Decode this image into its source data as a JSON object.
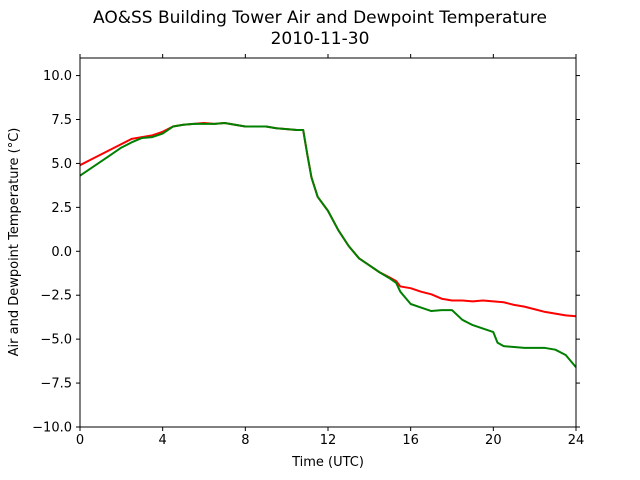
{
  "chart_data": {
    "type": "line",
    "title": "AO&SS Building Tower Air and Dewpoint Temperature",
    "subtitle": "2010-11-30",
    "xlabel": "Time (UTC)",
    "ylabel": "Air and Dewpoint Temperature (°C)",
    "xlim": [
      0,
      24
    ],
    "ylim": [
      -10.0,
      11.0
    ],
    "xticks": [
      0,
      4,
      8,
      12,
      16,
      20,
      24
    ],
    "xtick_labels": [
      "0",
      "4",
      "8",
      "12",
      "16",
      "20",
      "24"
    ],
    "yticks": [
      -10.0,
      -7.5,
      -5.0,
      -2.5,
      0.0,
      2.5,
      5.0,
      7.5,
      10.0
    ],
    "ytick_labels": [
      "−10.0",
      "−7.5",
      "−5.0",
      "−2.5",
      "0.0",
      "2.5",
      "5.0",
      "7.5",
      "10.0"
    ],
    "grid": false,
    "series": [
      {
        "color": "#ff0000",
        "x": [
          0,
          0.5,
          1,
          1.5,
          2,
          2.5,
          3,
          3.5,
          4,
          4.5,
          5,
          5.5,
          6,
          6.5,
          7,
          7.5,
          8,
          8.5,
          9,
          9.5,
          10,
          10.5,
          10.8,
          11,
          11.2,
          11.5,
          12,
          12.5,
          13,
          13.5,
          14,
          14.5,
          15,
          15.3,
          15.5,
          16,
          16.5,
          17,
          17.5,
          18,
          18.5,
          19,
          19.5,
          20,
          20.5,
          21,
          21.5,
          22,
          22.5,
          23,
          23.5,
          24
        ],
        "y": [
          4.9,
          5.2,
          5.5,
          5.8,
          6.1,
          6.4,
          6.5,
          6.6,
          6.8,
          7.1,
          7.2,
          7.25,
          7.3,
          7.25,
          7.3,
          7.2,
          7.1,
          7.1,
          7.1,
          7.0,
          6.95,
          6.9,
          6.9,
          5.5,
          4.2,
          3.1,
          2.3,
          1.2,
          0.3,
          -0.4,
          -0.8,
          -1.2,
          -1.5,
          -1.7,
          -2.0,
          -2.1,
          -2.3,
          -2.45,
          -2.7,
          -2.8,
          -2.8,
          -2.85,
          -2.8,
          -2.85,
          -2.9,
          -3.05,
          -3.15,
          -3.3,
          -3.45,
          -3.55,
          -3.65,
          -3.7
        ]
      },
      {
        "color": "#008000",
        "x": [
          0,
          0.5,
          1,
          1.5,
          2,
          2.5,
          3,
          3.5,
          4,
          4.5,
          5,
          5.5,
          6,
          6.5,
          7,
          7.5,
          8,
          8.5,
          9,
          9.5,
          10,
          10.5,
          10.8,
          11,
          11.2,
          11.5,
          12,
          12.5,
          13,
          13.5,
          14,
          14.5,
          15,
          15.3,
          15.5,
          16,
          16.5,
          17,
          17.5,
          18,
          18.5,
          19,
          19.5,
          20,
          20.2,
          20.5,
          21,
          21.5,
          22,
          22.5,
          23,
          23.5,
          24
        ],
        "y": [
          4.3,
          4.7,
          5.1,
          5.5,
          5.9,
          6.2,
          6.45,
          6.5,
          6.7,
          7.1,
          7.2,
          7.25,
          7.25,
          7.25,
          7.3,
          7.2,
          7.1,
          7.1,
          7.1,
          7.0,
          6.95,
          6.9,
          6.9,
          5.5,
          4.2,
          3.1,
          2.3,
          1.2,
          0.3,
          -0.4,
          -0.8,
          -1.2,
          -1.55,
          -1.8,
          -2.3,
          -3.0,
          -3.2,
          -3.4,
          -3.35,
          -3.35,
          -3.9,
          -4.2,
          -4.4,
          -4.6,
          -5.2,
          -5.4,
          -5.45,
          -5.5,
          -5.5,
          -5.5,
          -5.6,
          -5.9,
          -6.6
        ]
      }
    ]
  }
}
